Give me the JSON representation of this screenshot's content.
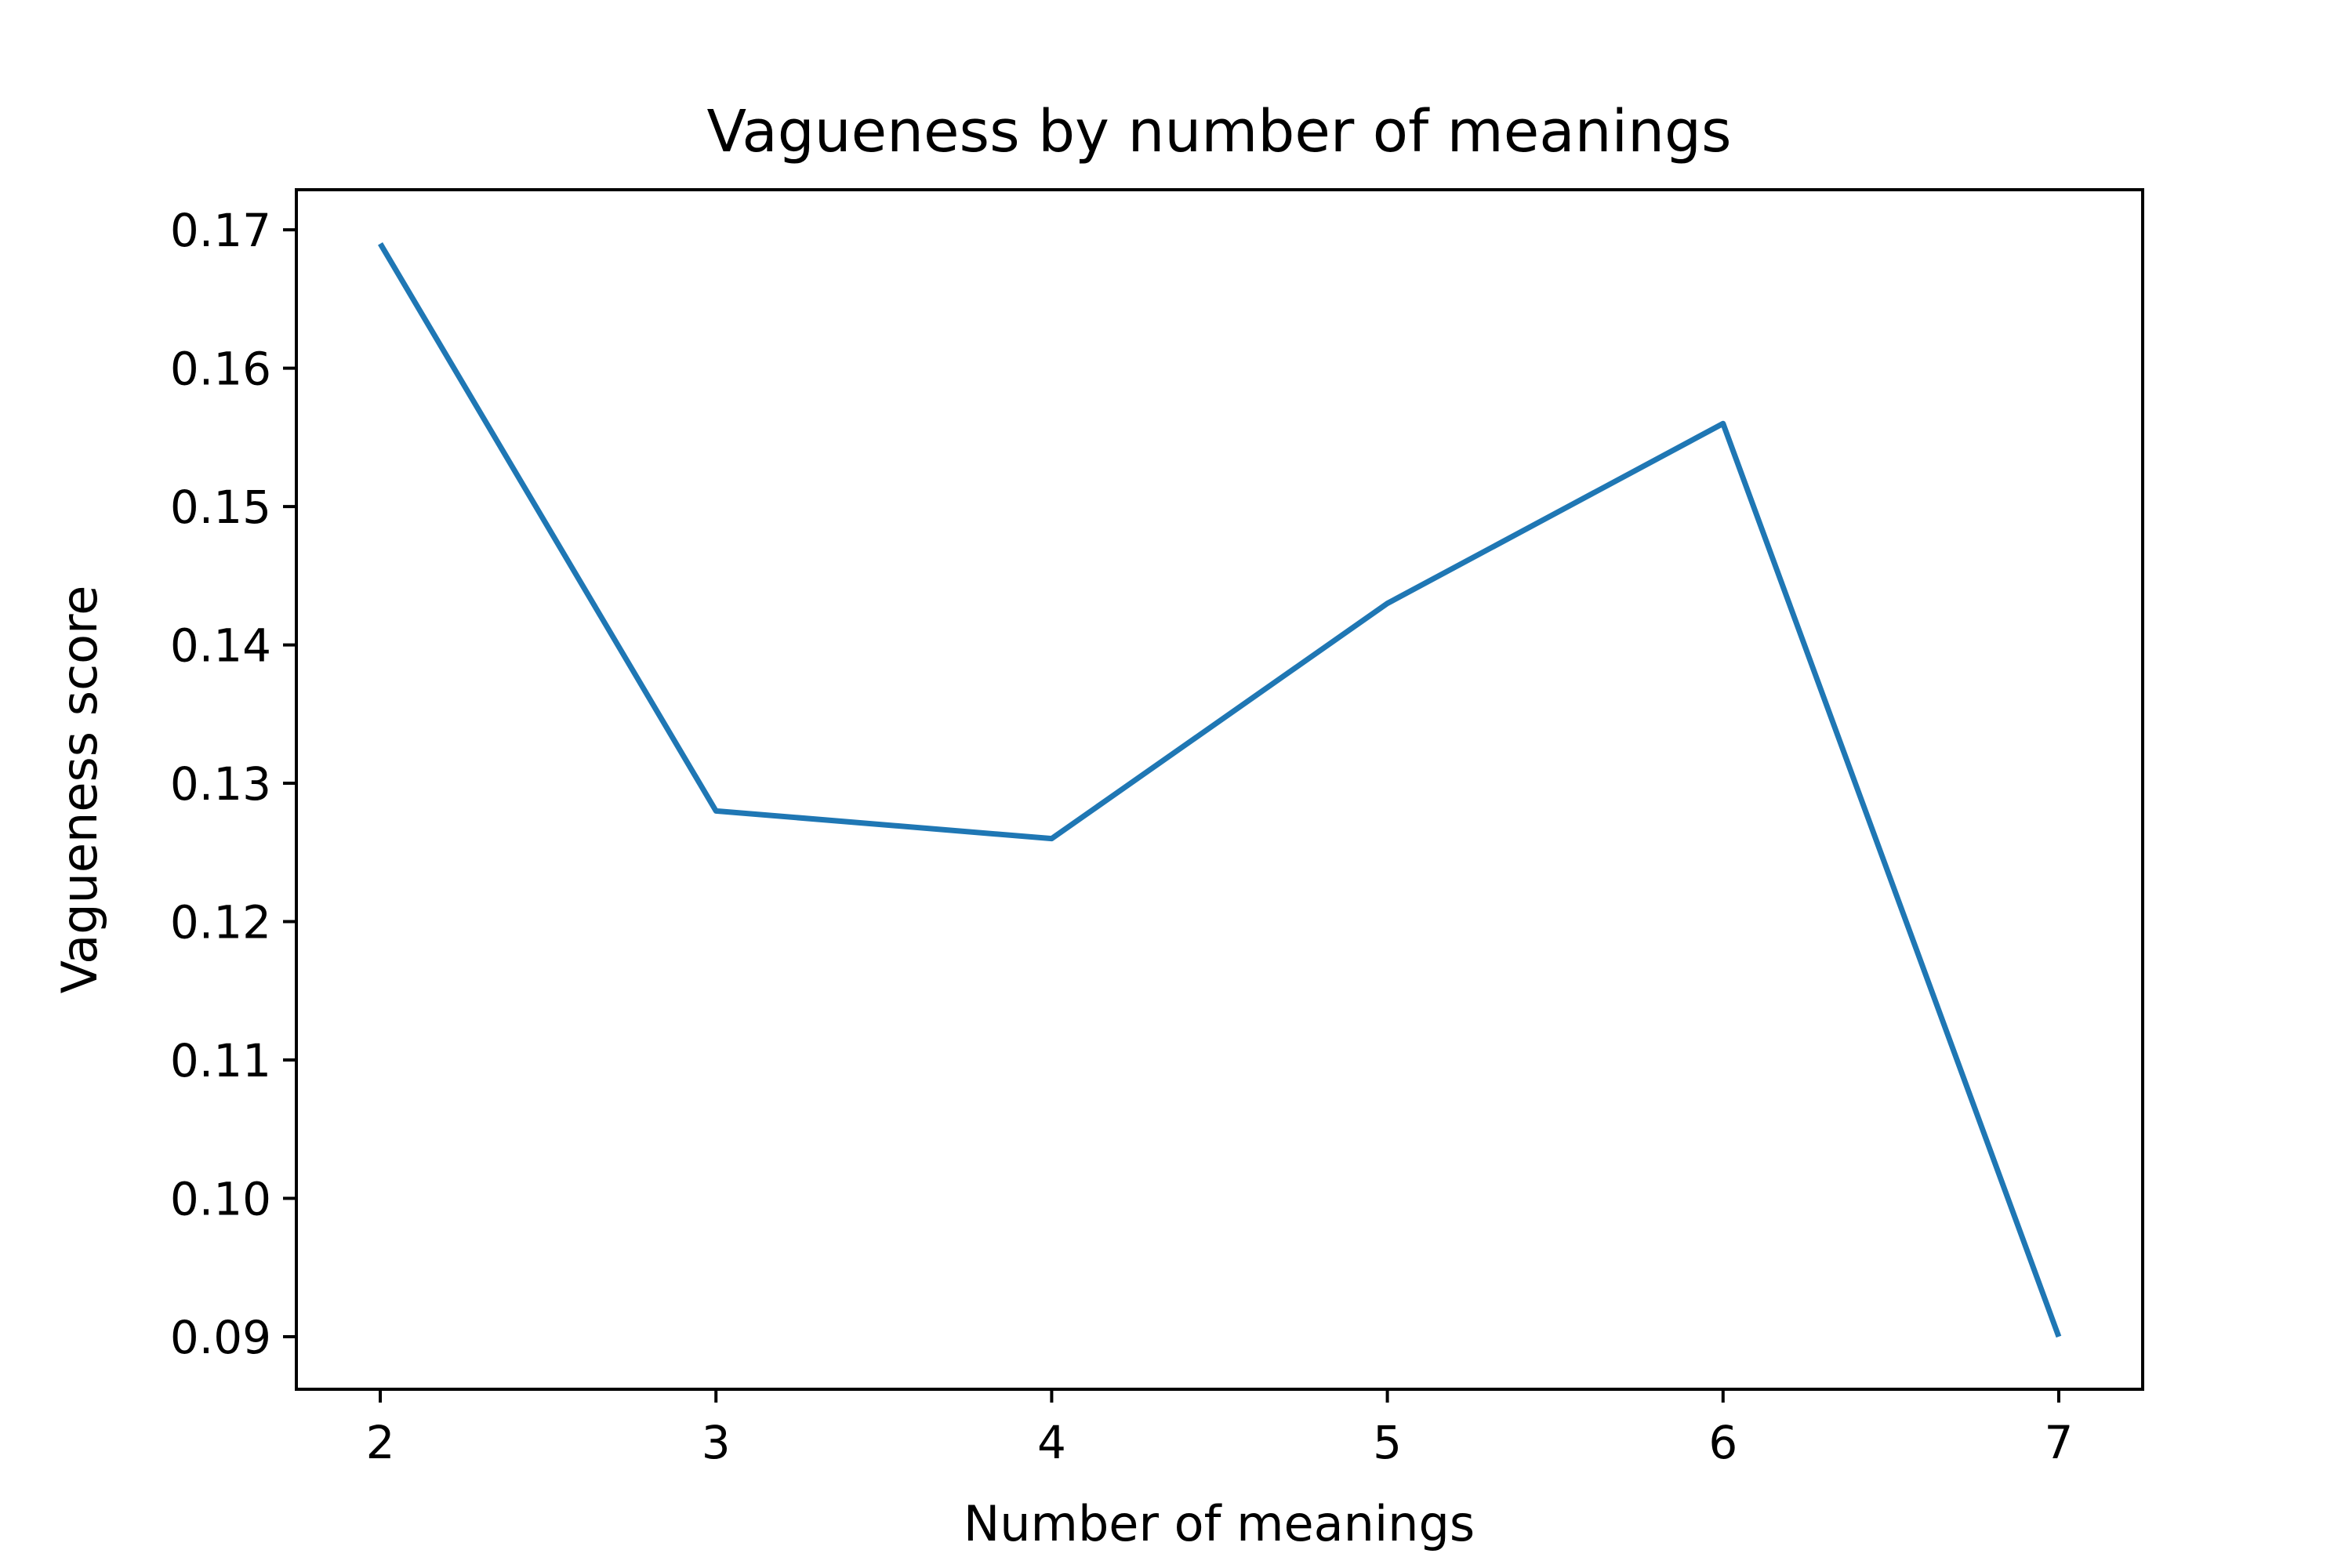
{
  "chart_data": {
    "type": "line",
    "title": "Vagueness by number of meanings",
    "xlabel": "Number of meanings",
    "ylabel": "Vagueness score",
    "x": [
      2,
      3,
      4,
      5,
      6,
      7
    ],
    "series": [
      {
        "values": [
          0.169,
          0.128,
          0.126,
          0.143,
          0.156,
          0.09
        ],
        "color": "#1f77b4"
      }
    ],
    "xticks": [
      "2",
      "3",
      "4",
      "5",
      "6",
      "7"
    ],
    "yticks": [
      "0.09",
      "0.10",
      "0.11",
      "0.12",
      "0.13",
      "0.14",
      "0.15",
      "0.16",
      "0.17"
    ],
    "xlim": [
      1.75,
      7.25
    ],
    "ylim": [
      0.0862,
      0.1729
    ],
    "grid": false,
    "legend": "none"
  }
}
